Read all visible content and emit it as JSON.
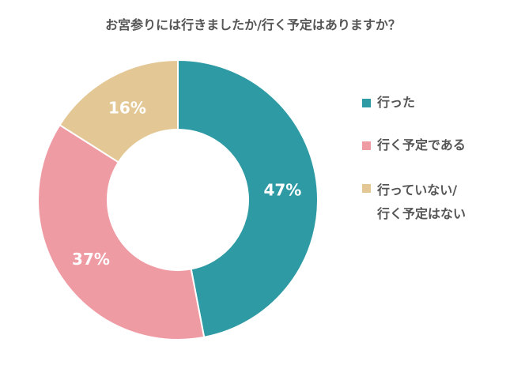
{
  "chart_data": {
    "type": "pie",
    "variant": "donut",
    "title": "お宮参りには行きましたか/行く予定はありますか？",
    "categories": [
      "行った",
      "行く予定である",
      "行っていない/行く予定はない"
    ],
    "values": [
      47,
      37,
      16
    ],
    "unit": "%",
    "colors": [
      "#2e9aa3",
      "#ef9ba4",
      "#e3c794"
    ],
    "labels": [
      "47%",
      "37%",
      "16%"
    ],
    "legend_position": "right",
    "start_angle_deg": 0,
    "direction": "clockwise"
  },
  "legend": {
    "items": [
      {
        "line1": "行った",
        "line2": "",
        "color": "#2e9aa3"
      },
      {
        "line1": "行く予定である",
        "line2": "",
        "color": "#ef9ba4"
      },
      {
        "line1": "行っていない/",
        "line2": "行く予定はない",
        "color": "#e3c794"
      }
    ]
  }
}
